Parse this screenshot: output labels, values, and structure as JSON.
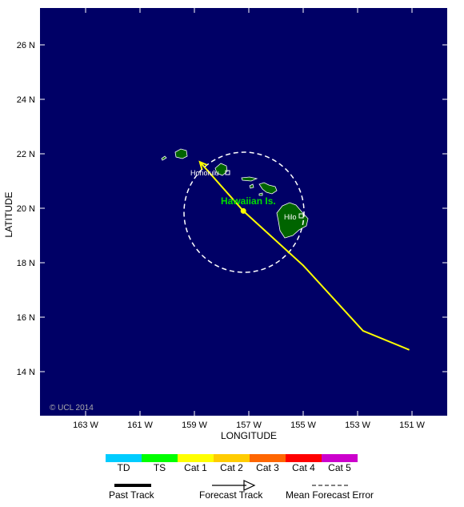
{
  "map": {
    "copyright": "© UCL 2014",
    "region_label": "Hawaiian Is.",
    "colors": {
      "ocean": "#000066",
      "land": "#006400",
      "track": "#ffff00",
      "region_label": "#00dd00",
      "error_circle": "#ffffff"
    },
    "x_axis": {
      "title": "LONGITUDE",
      "ticks": [
        "163 W",
        "161 W",
        "159 W",
        "157 W",
        "155 W",
        "153 W",
        "151 W"
      ]
    },
    "y_axis": {
      "title": "LATITUDE",
      "ticks": [
        "26 N",
        "24 N",
        "22 N",
        "20 N",
        "18 N",
        "16 N",
        "14 N"
      ]
    },
    "cities": [
      {
        "name": "Honolulu",
        "icon": "city-square-icon"
      },
      {
        "name": "Hilo",
        "icon": "city-square-icon"
      }
    ],
    "track": {
      "forecast_points": [
        {
          "lon": 151.1,
          "lat": 14.8
        },
        {
          "lon": 152.8,
          "lat": 15.5
        },
        {
          "lon": 155.0,
          "lat": 17.9
        },
        {
          "lon": 157.2,
          "lat": 19.9
        },
        {
          "lon": 158.8,
          "lat": 21.7
        }
      ],
      "current_position": {
        "lon": 157.2,
        "lat": 19.9
      },
      "mean_error_radius_deg": 2.2,
      "direction": "north-west"
    }
  },
  "legend": {
    "categories": [
      {
        "label": "TD",
        "color": "#00ccff"
      },
      {
        "label": "TS",
        "color": "#00ff00"
      },
      {
        "label": "Cat 1",
        "color": "#ffff00"
      },
      {
        "label": "Cat 2",
        "color": "#ffcc00"
      },
      {
        "label": "Cat 3",
        "color": "#ff6600"
      },
      {
        "label": "Cat 4",
        "color": "#ff0000"
      },
      {
        "label": "Cat 5",
        "color": "#cc00cc"
      }
    ],
    "key": {
      "past_track": "Past Track",
      "forecast_track": "Forecast Track",
      "mean_forecast_error": "Mean Forecast Error"
    }
  }
}
